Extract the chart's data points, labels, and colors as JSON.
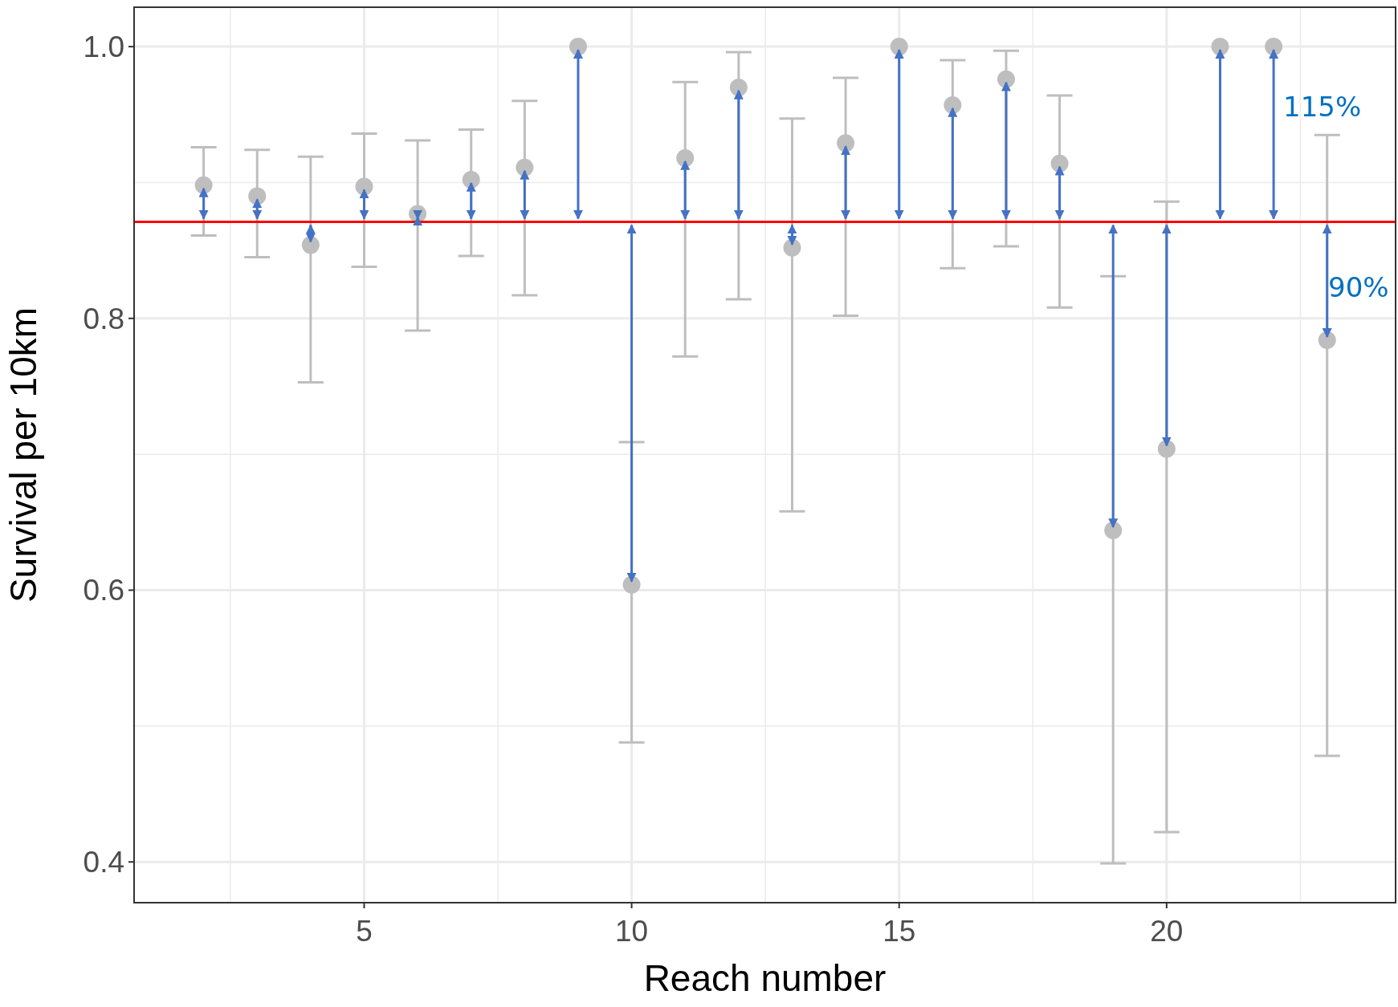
{
  "chart_data": {
    "type": "scatter",
    "xlabel": "Reach number",
    "ylabel": "Survival per 10km",
    "x": [
      2,
      3,
      4,
      5,
      6,
      7,
      8,
      9,
      10,
      11,
      12,
      13,
      14,
      15,
      16,
      17,
      18,
      19,
      20,
      21,
      22,
      23
    ],
    "values": [
      0.898,
      0.89,
      0.854,
      0.897,
      0.877,
      0.902,
      0.911,
      1.0,
      0.604,
      0.918,
      0.97,
      0.852,
      0.929,
      1.0,
      0.957,
      0.976,
      0.914,
      0.644,
      0.704,
      1.0,
      1.0,
      0.784
    ],
    "errors": [
      [
        0.861,
        0.926
      ],
      [
        0.845,
        0.924
      ],
      [
        0.753,
        0.919
      ],
      [
        0.838,
        0.936
      ],
      [
        0.791,
        0.931
      ],
      [
        0.846,
        0.939
      ],
      [
        0.817,
        0.96
      ],
      null,
      [
        0.488,
        0.709
      ],
      [
        0.772,
        0.974
      ],
      [
        0.814,
        0.996
      ],
      [
        0.658,
        0.947
      ],
      [
        0.802,
        0.977
      ],
      null,
      [
        0.837,
        0.99
      ],
      [
        0.853,
        0.997
      ],
      [
        0.808,
        0.964
      ],
      [
        0.399,
        0.831
      ],
      [
        0.422,
        0.886
      ],
      null,
      null,
      [
        0.478,
        0.935
      ]
    ],
    "color": "#bebebe",
    "marker": "circle",
    "xlim": [
      0.7,
      24.28
    ],
    "xticks": [
      {
        "value": 2.5,
        "label": null
      },
      5,
      {
        "value": 7.5,
        "label": null
      },
      10,
      {
        "value": 12.5,
        "label": null
      },
      15,
      {
        "value": 17.5,
        "label": null
      },
      20,
      {
        "value": 22.5,
        "label": null
      }
    ],
    "ylim": [
      0.37,
      1.029
    ],
    "yticks": [
      0.4,
      {
        "value": 0.5,
        "label": null
      },
      0.6,
      {
        "value": 0.7,
        "label": null
      },
      0.8,
      {
        "value": 0.9,
        "label": null
      },
      {
        "value": 1.0,
        "label": "1.0"
      }
    ],
    "grid": true,
    "ref_lines": [
      {
        "axis": "y",
        "value": 0.871,
        "color": "#ff0000"
      }
    ],
    "annotations": [
      "115%",
      "90%"
    ]
  }
}
